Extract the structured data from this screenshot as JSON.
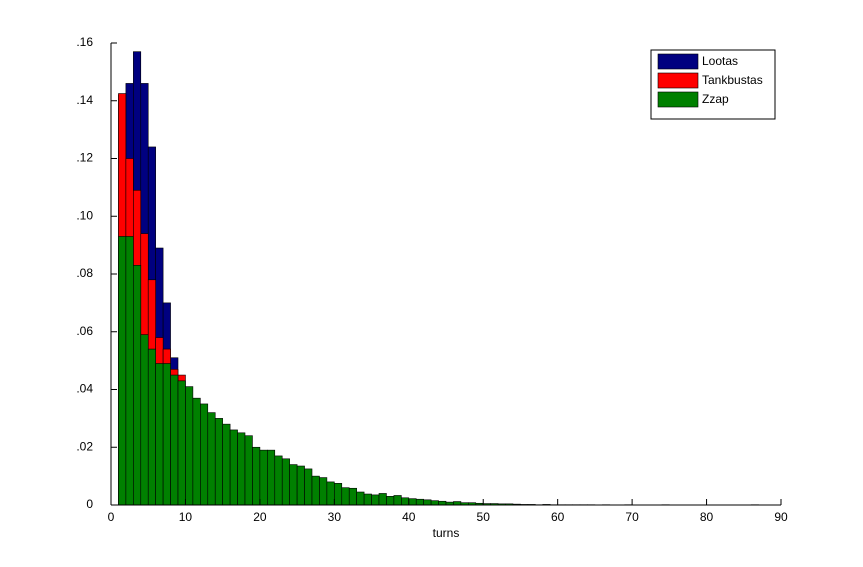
{
  "chart_data": {
    "type": "histogram",
    "xlabel": "turns",
    "bins": [
      1,
      2,
      3,
      4,
      5,
      6,
      7,
      8,
      9,
      10,
      11,
      12,
      13,
      14,
      15,
      16,
      17,
      18,
      19,
      20,
      21,
      22,
      23,
      24,
      25,
      26,
      27,
      28,
      29,
      30,
      31,
      32,
      33,
      34,
      35,
      36,
      37,
      38,
      39,
      40,
      41,
      42,
      43,
      44,
      45,
      46,
      47,
      48,
      49,
      50,
      51,
      52,
      53,
      54,
      55,
      56,
      57,
      58,
      59,
      60,
      61,
      62,
      63,
      64,
      65,
      66,
      67,
      68,
      69,
      70,
      71,
      72,
      73,
      74,
      75,
      76,
      77,
      78,
      79,
      80,
      81,
      82,
      83,
      84,
      85,
      86,
      87,
      88
    ],
    "series": [
      {
        "name": "Lootas",
        "color": "#000080",
        "values": [
          0.142,
          0.146,
          0.157,
          0.146,
          0.124,
          0.089,
          0.07,
          0.051,
          0.038,
          0.028,
          0.02,
          0.014,
          0.01,
          0.007,
          0.005,
          0.0035,
          0.0025,
          0.0018,
          0.0012,
          0.0008,
          0.0006,
          0.0004,
          0.0003,
          0.0002,
          0.0001,
          0,
          0,
          0,
          0,
          0,
          0,
          0,
          0,
          0,
          0,
          0,
          0,
          0,
          0,
          0,
          0,
          0,
          0,
          0,
          0,
          0,
          0,
          0,
          0,
          0,
          0,
          0,
          0,
          0,
          0,
          0,
          0,
          0,
          0,
          0,
          0,
          0,
          0,
          0,
          0,
          0,
          0,
          0,
          0,
          0,
          0,
          0,
          0,
          0,
          0,
          0,
          0,
          0,
          0,
          0,
          0,
          0,
          0,
          0,
          0,
          0,
          0
        ]
      },
      {
        "name": "Tankbustas",
        "color": "#ff0000",
        "values": [
          0.1425,
          0.12,
          0.109,
          0.094,
          0.078,
          0.058,
          0.054,
          0.047,
          0.045,
          0.037,
          0.03,
          0.025,
          0.021,
          0.017,
          0.014,
          0.012,
          0.01,
          0.008,
          0.007,
          0.0055,
          0.0045,
          0.004,
          0.003,
          0.0025,
          0.002,
          0.0015,
          0.0012,
          0.001,
          0.0008,
          0.0006,
          0.0005,
          0.0004,
          0.0003,
          0.0002,
          0.0002,
          0.0001,
          0.0001,
          0,
          0,
          0,
          0,
          0,
          0,
          0,
          0,
          0,
          0,
          0,
          0,
          0,
          0,
          0,
          0,
          0,
          0,
          0,
          0,
          0,
          0,
          0,
          0,
          0,
          0,
          0,
          0,
          0,
          0,
          0,
          0,
          0,
          0,
          0,
          0,
          0,
          0,
          0,
          0,
          0,
          0,
          0,
          0,
          0,
          0,
          0,
          0,
          0,
          0
        ]
      },
      {
        "name": "Zzap",
        "color": "#008000",
        "values": [
          0.093,
          0.093,
          0.083,
          0.059,
          0.054,
          0.049,
          0.049,
          0.045,
          0.043,
          0.041,
          0.037,
          0.035,
          0.032,
          0.03,
          0.028,
          0.026,
          0.025,
          0.024,
          0.02,
          0.019,
          0.019,
          0.017,
          0.016,
          0.014,
          0.0135,
          0.0125,
          0.01,
          0.0095,
          0.008,
          0.0075,
          0.006,
          0.0058,
          0.0045,
          0.0038,
          0.0035,
          0.004,
          0.003,
          0.0033,
          0.0025,
          0.0022,
          0.002,
          0.0018,
          0.0015,
          0.0013,
          0.001,
          0.0012,
          0.0008,
          0.0008,
          0.0006,
          0.0005,
          0.0005,
          0.0004,
          0.0004,
          0.0003,
          0.0002,
          0.0002,
          0.0001,
          0.0002,
          0.0001,
          0.0001,
          0.0001,
          0.0001,
          0.0001,
          0.0001,
          0,
          0.0001,
          0,
          0,
          0.0001,
          0,
          0,
          0,
          0,
          0.0001,
          0,
          0,
          0,
          0,
          0,
          0,
          0,
          0,
          0,
          0,
          0,
          0.0001,
          0
        ]
      }
    ],
    "xlim": [
      0,
      90
    ],
    "xticks": [
      0,
      10,
      20,
      30,
      40,
      50,
      60,
      70,
      80,
      90
    ],
    "ylim": [
      0,
      0.16
    ],
    "yticks": [
      0,
      {
        "value": 0.02,
        "label": ".02"
      },
      {
        "value": 0.04,
        "label": ".04"
      },
      {
        "value": 0.06,
        "label": ".06"
      },
      {
        "value": 0.08,
        "label": ".08"
      },
      {
        "value": 0.1,
        "label": ".10"
      },
      {
        "value": 0.12,
        "label": ".12"
      },
      {
        "value": 0.14,
        "label": ".14"
      },
      {
        "value": 0.16,
        "label": ".16"
      }
    ],
    "legend": "northeast"
  }
}
